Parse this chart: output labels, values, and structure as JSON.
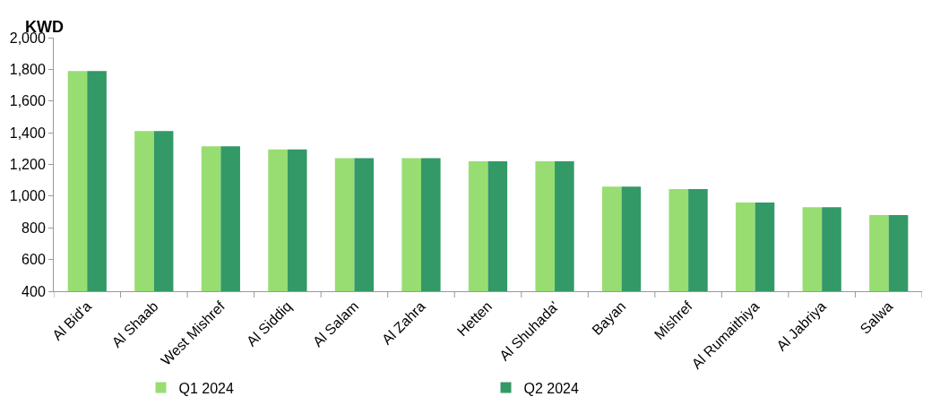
{
  "chart_data": {
    "type": "bar",
    "ylabel": "KWD",
    "categories": [
      "Al Bid'a",
      "Al Shaab",
      "West Mishref",
      "Al Siddiq",
      "Al Salam",
      "Al Zahra",
      "Hetten",
      "Al Shuhada'",
      "Bayan",
      "Mishref",
      "Al Rumaithiya",
      "Al Jabriya",
      "Salwa"
    ],
    "series": [
      {
        "name": "Q1 2024",
        "color": "#98dd72",
        "values": [
          1790,
          1410,
          1315,
          1295,
          1240,
          1240,
          1220,
          1220,
          1060,
          1045,
          960,
          930,
          880
        ]
      },
      {
        "name": "Q2 2024",
        "color": "#339966",
        "values": [
          1790,
          1410,
          1315,
          1295,
          1240,
          1240,
          1220,
          1220,
          1060,
          1045,
          960,
          930,
          880
        ]
      }
    ],
    "ylim": [
      400,
      2000
    ],
    "yticks": [
      {
        "value": 400,
        "label": "400"
      },
      {
        "value": 600,
        "label": "600"
      },
      {
        "value": 800,
        "label": "800"
      },
      {
        "value": 1000,
        "label": "1,000"
      },
      {
        "value": 1200,
        "label": "1,200"
      },
      {
        "value": 1400,
        "label": "1,400"
      },
      {
        "value": 1600,
        "label": "1,600"
      },
      {
        "value": 1800,
        "label": "1,800"
      },
      {
        "value": 2000,
        "label": "2,000"
      }
    ],
    "legend": "bottom"
  }
}
